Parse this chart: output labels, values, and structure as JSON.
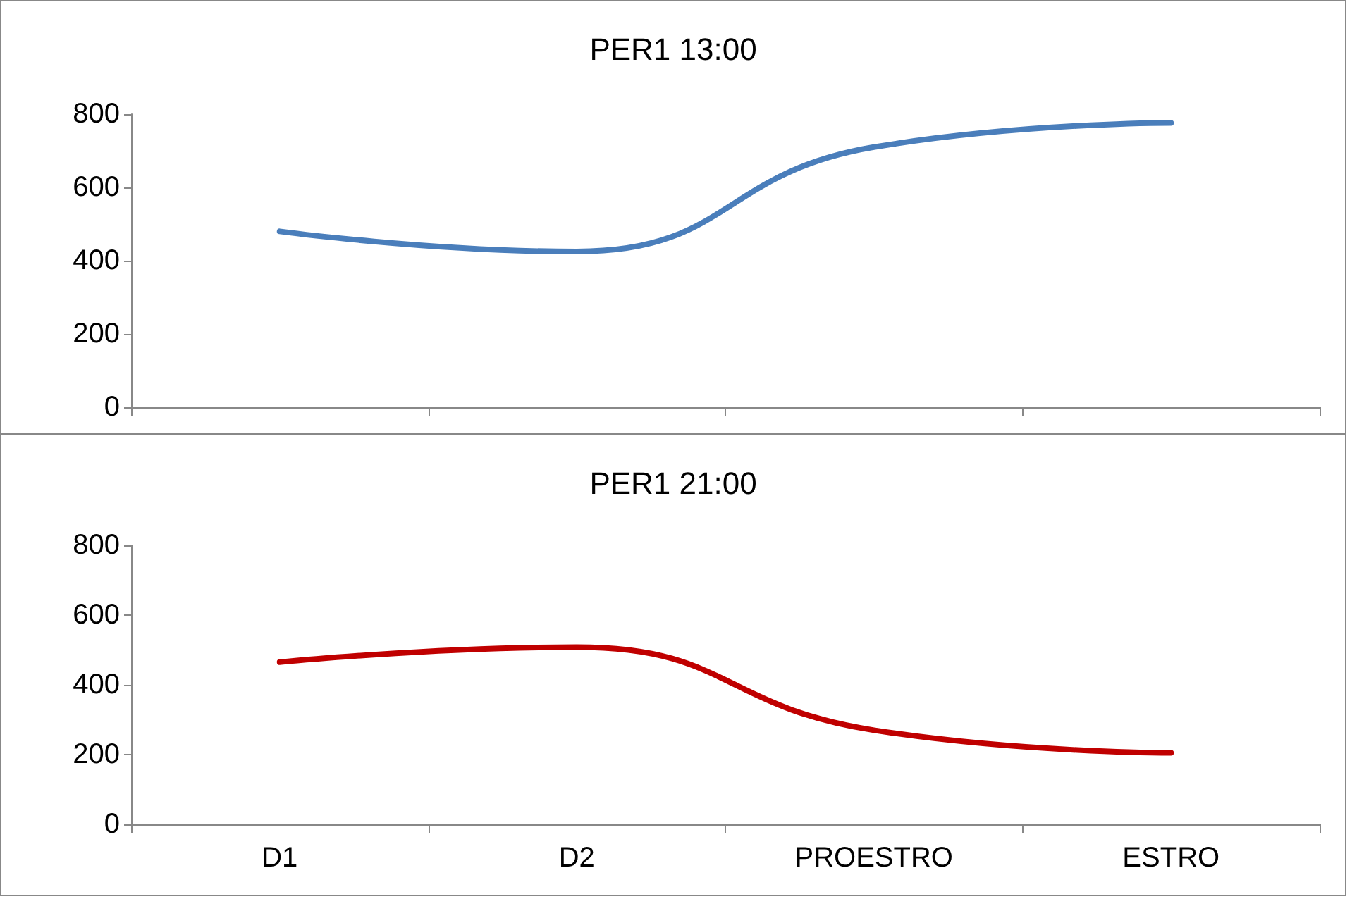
{
  "chart_data": [
    {
      "type": "line",
      "title": "PER1 13:00",
      "categories": [
        null,
        null,
        null,
        null
      ],
      "series": [
        {
          "color": "#4a7ebb",
          "values": [
            480,
            425,
            710,
            776
          ]
        }
      ],
      "ylim": [
        0,
        800
      ],
      "yticks": [
        0,
        200,
        400,
        600,
        800
      ],
      "grid": false,
      "marker": "none",
      "line_style": "solid"
    },
    {
      "type": "line",
      "title": "PER1 21:00",
      "categories": [
        "D1",
        "D2",
        "PROESTRO",
        "ESTRO"
      ],
      "series": [
        {
          "color": "#c00000",
          "values": [
            465,
            508,
            270,
            205
          ]
        }
      ],
      "ylim": [
        0,
        800
      ],
      "yticks": [
        0,
        200,
        400,
        600,
        800
      ],
      "grid": false,
      "marker": "none",
      "line_style": "solid"
    }
  ]
}
